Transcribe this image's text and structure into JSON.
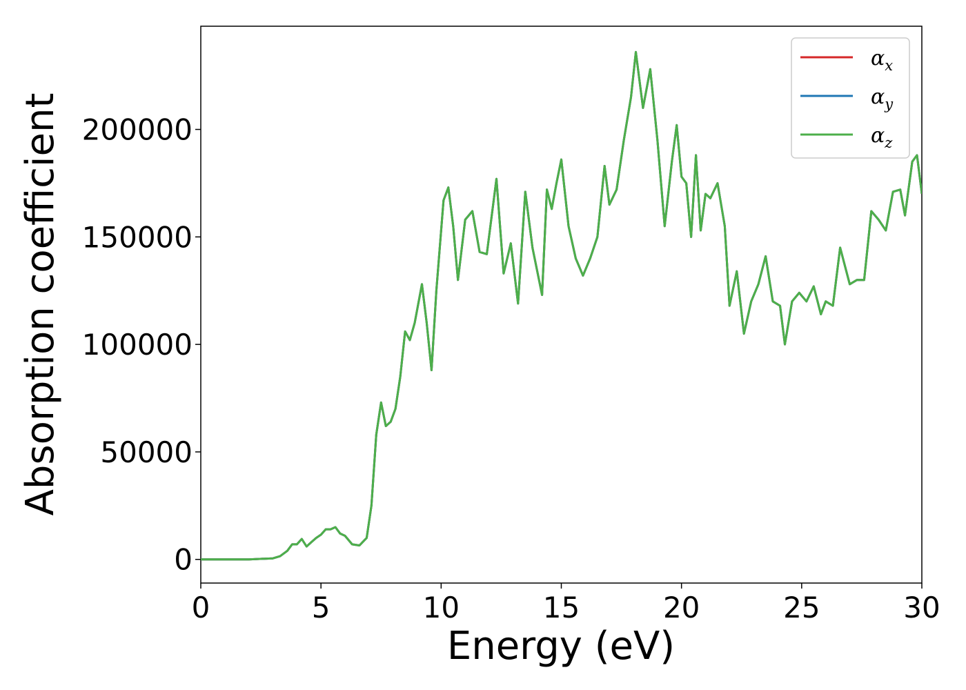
{
  "chart_data": {
    "type": "line",
    "title": "",
    "xlabel": "Energy (eV)",
    "ylabel": "Absorption coefficient",
    "xlim": [
      0,
      30
    ],
    "ylim": [
      -11000,
      248000
    ],
    "xticks": [
      0,
      5,
      10,
      15,
      20,
      25,
      30
    ],
    "yticks": [
      0,
      50000,
      100000,
      150000,
      200000
    ],
    "grid": false,
    "legend_position": "top-right",
    "legend": [
      {
        "symbol": "α",
        "sub": "x",
        "color": "#d62728"
      },
      {
        "symbol": "α",
        "sub": "y",
        "color": "#1f77b4"
      },
      {
        "symbol": "α",
        "sub": "z",
        "color": "#4daf4a"
      }
    ],
    "series": [
      {
        "name": "αx",
        "color": "#d62728",
        "ref": "shared"
      },
      {
        "name": "αy",
        "color": "#1f77b4",
        "ref": "shared"
      },
      {
        "name": "αz",
        "color": "#4daf4a",
        "ref": "shared"
      }
    ],
    "shared": {
      "x": [
        0,
        2,
        3,
        3.3,
        3.6,
        3.8,
        4.0,
        4.2,
        4.4,
        4.6,
        4.8,
        5.0,
        5.2,
        5.4,
        5.6,
        5.8,
        6.0,
        6.3,
        6.6,
        6.9,
        7.1,
        7.3,
        7.5,
        7.7,
        7.9,
        8.1,
        8.3,
        8.5,
        8.7,
        8.9,
        9.2,
        9.4,
        9.6,
        9.8,
        10.1,
        10.3,
        10.5,
        10.7,
        11.0,
        11.3,
        11.6,
        11.9,
        12.3,
        12.6,
        12.9,
        13.2,
        13.5,
        13.8,
        14.2,
        14.4,
        14.6,
        14.8,
        15.0,
        15.3,
        15.6,
        15.9,
        16.2,
        16.5,
        16.8,
        17.0,
        17.3,
        17.6,
        17.9,
        18.1,
        18.4,
        18.7,
        19.0,
        19.3,
        19.6,
        19.8,
        20.0,
        20.2,
        20.4,
        20.6,
        20.8,
        21.0,
        21.2,
        21.5,
        21.8,
        22.0,
        22.3,
        22.6,
        22.9,
        23.2,
        23.5,
        23.8,
        24.1,
        24.3,
        24.6,
        24.9,
        25.2,
        25.5,
        25.8,
        26.0,
        26.3,
        26.6,
        27.0,
        27.3,
        27.6,
        27.9,
        28.2,
        28.5,
        28.8,
        29.1,
        29.3,
        29.6,
        29.8,
        30.0
      ],
      "y": [
        0,
        0,
        500,
        1500,
        4000,
        7000,
        7000,
        9500,
        6000,
        8000,
        10000,
        11500,
        14000,
        14000,
        15000,
        12000,
        11000,
        7000,
        6500,
        10000,
        25000,
        58000,
        73000,
        62000,
        64000,
        70000,
        85000,
        106000,
        102000,
        110000,
        128000,
        110000,
        88000,
        125000,
        167000,
        173000,
        155000,
        130000,
        158000,
        162000,
        143000,
        142000,
        177000,
        133000,
        147000,
        119000,
        171000,
        145000,
        123000,
        172000,
        163000,
        175000,
        186000,
        155000,
        140000,
        132000,
        140000,
        150000,
        183000,
        165000,
        172000,
        195000,
        215000,
        236000,
        210000,
        228000,
        195000,
        155000,
        185000,
        202000,
        178000,
        175000,
        150000,
        188000,
        153000,
        170000,
        168000,
        175000,
        155000,
        118000,
        134000,
        105000,
        120000,
        128000,
        141000,
        120000,
        118000,
        100000,
        120000,
        124000,
        120000,
        127000,
        114000,
        120000,
        118000,
        145000,
        128000,
        130000,
        130000,
        162000,
        158000,
        153000,
        171000,
        172000,
        160000,
        185000,
        188000,
        170000
      ]
    }
  }
}
